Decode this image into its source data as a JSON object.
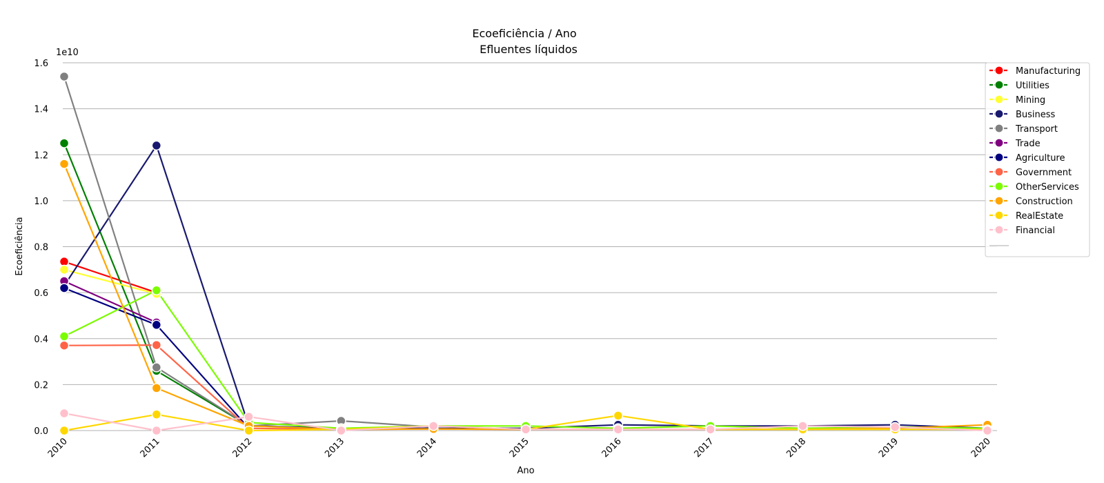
{
  "chart_data": {
    "type": "line",
    "title": "Ecoeficiência / Ano",
    "subtitle": "Efluentes líquidos",
    "xlabel": "Ano",
    "ylabel": "Ecoeficiência",
    "y_multiplier": "1e10",
    "ylim": [
      0,
      1.6
    ],
    "yticks": [
      "0.0",
      "0.2",
      "0.4",
      "0.6",
      "0.8",
      "1.0",
      "1.2",
      "1.4",
      "1.6"
    ],
    "grid": "horizontal",
    "legend_position": "right",
    "x": [
      "2010",
      "2011",
      "2012",
      "2013",
      "2014",
      "2015",
      "2016",
      "2017",
      "2018",
      "2019",
      "2020"
    ],
    "series": [
      {
        "name": "Manufacturing",
        "color": "#ff0000",
        "values": [
          0.735,
          0.6,
          null,
          null,
          null,
          null,
          null,
          null,
          null,
          null,
          null
        ]
      },
      {
        "name": "Utilities",
        "color": "#008000",
        "values": [
          1.25,
          0.26,
          0.02,
          null,
          null,
          null,
          null,
          null,
          null,
          null,
          null
        ]
      },
      {
        "name": "Mining",
        "color": "#ffff33",
        "values": [
          0.7,
          0.595,
          null,
          null,
          null,
          null,
          null,
          null,
          null,
          null,
          null
        ]
      },
      {
        "name": "Business",
        "color": "#191970",
        "values": [
          0.63,
          1.24,
          0.02,
          0.01,
          0.01,
          0.01,
          0.025,
          0.02,
          0.02,
          0.025,
          0.01
        ]
      },
      {
        "name": "Transport",
        "color": "#808080",
        "values": [
          1.54,
          0.275,
          0.02,
          0.042,
          0.015,
          null,
          null,
          null,
          null,
          null,
          null
        ]
      },
      {
        "name": "Trade",
        "color": "#800080",
        "values": [
          0.65,
          0.47,
          null,
          null,
          null,
          null,
          null,
          null,
          null,
          null,
          null
        ]
      },
      {
        "name": "Agriculture",
        "color": "#000080",
        "values": [
          0.62,
          0.46,
          0.01,
          null,
          null,
          null,
          null,
          null,
          null,
          null,
          null
        ]
      },
      {
        "name": "Government",
        "color": "#ff6347",
        "values": [
          0.37,
          0.372,
          0.01,
          0.005,
          0.007,
          0.005,
          null,
          null,
          null,
          null,
          null
        ]
      },
      {
        "name": "OtherServices",
        "color": "#7cfc00",
        "values": [
          0.41,
          0.61,
          0.035,
          0.01,
          0.02,
          0.02,
          0.01,
          0.02,
          0.01,
          0.015,
          0.01
        ]
      },
      {
        "name": "Construction",
        "color": "#ffa500",
        "values": [
          1.16,
          0.185,
          0.02,
          0.005,
          0.007,
          0.005,
          0.005,
          0.005,
          0.005,
          0.01,
          0.025
        ]
      },
      {
        "name": "RealEstate",
        "color": "#ffd700",
        "values": [
          0.0,
          0.07,
          0.0,
          0.005,
          0.02,
          0.005,
          0.065,
          0.005,
          0.005,
          0.005,
          0.005
        ]
      },
      {
        "name": "Financial",
        "color": "#ffc0cb",
        "values": [
          0.075,
          0.0,
          0.06,
          0.0,
          0.02,
          0.005,
          0.005,
          0.005,
          0.02,
          0.015,
          0.0
        ]
      }
    ]
  }
}
